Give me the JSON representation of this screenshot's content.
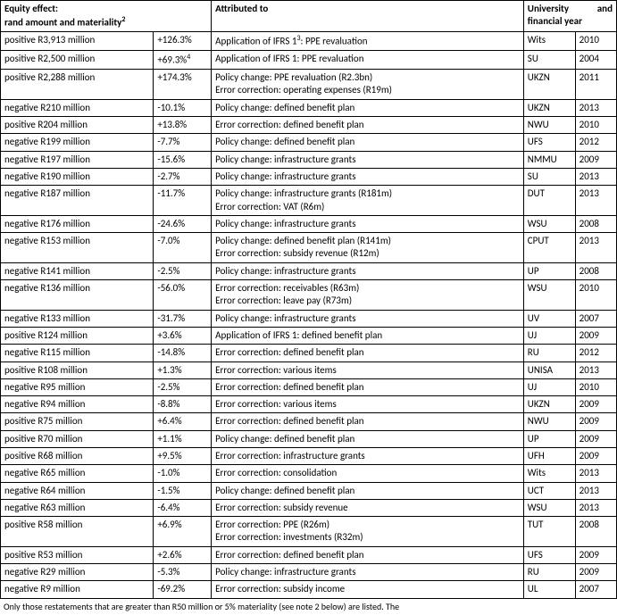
{
  "headers": {
    "equity_effect_line1": "Equity effect:",
    "equity_effect_line2": "rand amount and materiality",
    "equity_effect_sup": "2",
    "attributed_to": "Attributed to",
    "university_line1": "University",
    "university_line1_and": "and",
    "university_line2": "financial year"
  },
  "rows": [
    {
      "effect": "positive R3,913 million",
      "pct": "+126.3%",
      "pct_sup": "",
      "attr": "Application of IFRS 1",
      "attr_sup": "3",
      "attr_tail": ": PPE revaluation",
      "attr2": "",
      "uni": "Wits",
      "year": "2010"
    },
    {
      "effect": "positive R2,500 million",
      "pct": "+69.3%",
      "pct_sup": "4",
      "attr": "Application of IFRS 1: PPE revaluation",
      "attr_sup": "",
      "attr_tail": "",
      "attr2": "",
      "uni": "SU",
      "year": "2004"
    },
    {
      "effect": "positive R2,288 million",
      "pct": "+174.3%",
      "pct_sup": "",
      "attr": "Policy change: PPE revaluation (R2.3bn)",
      "attr_sup": "",
      "attr_tail": "",
      "attr2": "Error correction: operating expenses (R19m)",
      "uni": "UKZN",
      "year": "2011"
    },
    {
      "effect": "negative R210 million",
      "pct": "-10.1%",
      "pct_sup": "",
      "attr": "Policy change: defined benefit plan",
      "attr_sup": "",
      "attr_tail": "",
      "attr2": "",
      "uni": "UKZN",
      "year": "2013"
    },
    {
      "effect": "positive R204 million",
      "pct": "+13.8%",
      "pct_sup": "",
      "attr": "Error correction: defined benefit plan",
      "attr_sup": "",
      "attr_tail": "",
      "attr2": "",
      "uni": "NWU",
      "year": "2010"
    },
    {
      "effect": "negative R199 million",
      "pct": "-7.7%",
      "pct_sup": "",
      "attr": "Policy change: defined benefit plan",
      "attr_sup": "",
      "attr_tail": "",
      "attr2": "",
      "uni": "UFS",
      "year": "2012"
    },
    {
      "effect": "negative R197 million",
      "pct": "-15.6%",
      "pct_sup": "",
      "attr": "Policy change: infrastructure grants",
      "attr_sup": "",
      "attr_tail": "",
      "attr2": "",
      "uni": "NMMU",
      "year": "2009"
    },
    {
      "effect": "negative R190 million",
      "pct": "-2.7%",
      "pct_sup": "",
      "attr": "Policy change: infrastructure grants",
      "attr_sup": "",
      "attr_tail": "",
      "attr2": "",
      "uni": "SU",
      "year": "2013"
    },
    {
      "effect": "negative R187 million",
      "pct": "-11.7%",
      "pct_sup": "",
      "attr": "Policy change: infrastructure grants (R181m)",
      "attr_sup": "",
      "attr_tail": "",
      "attr2": "Error correction: VAT (R6m)",
      "uni": "DUT",
      "year": "2013"
    },
    {
      "effect": "negative R176 million",
      "pct": "-24.6%",
      "pct_sup": "",
      "attr": "Policy change: infrastructure grants",
      "attr_sup": "",
      "attr_tail": "",
      "attr2": "",
      "uni": "WSU",
      "year": "2008"
    },
    {
      "effect": "negative R153 million",
      "pct": "-7.0%",
      "pct_sup": "",
      "attr": "Policy change: defined benefit plan (R141m)",
      "attr_sup": "",
      "attr_tail": "",
      "attr2": "Error correction: subsidy revenue (R12m)",
      "uni": "CPUT",
      "year": "2013"
    },
    {
      "effect": "negative R141 million",
      "pct": "-2.5%",
      "pct_sup": "",
      "attr": "Policy change: infrastructure grants",
      "attr_sup": "",
      "attr_tail": "",
      "attr2": "",
      "uni": "UP",
      "year": "2008"
    },
    {
      "effect": "negative R136 million",
      "pct": "-56.0%",
      "pct_sup": "",
      "attr": "Error correction: receivables (R63m)",
      "attr_sup": "",
      "attr_tail": "",
      "attr2": "Error correction: leave pay (R73m)",
      "uni": "WSU",
      "year": "2010"
    },
    {
      "effect": "negative R133 million",
      "pct": "-31.7%",
      "pct_sup": "",
      "attr": "Policy change: infrastructure grants",
      "attr_sup": "",
      "attr_tail": "",
      "attr2": "",
      "uni": "UV",
      "year": "2007"
    },
    {
      "effect": "positive R124 million",
      "pct": "+3.6%",
      "pct_sup": "",
      "attr": "Application of IFRS 1: defined benefit plan",
      "attr_sup": "",
      "attr_tail": "",
      "attr2": "",
      "uni": "UJ",
      "year": "2009"
    },
    {
      "effect": "negative R115 million",
      "pct": "-14.8%",
      "pct_sup": "",
      "attr": "Error correction: defined benefit plan",
      "attr_sup": "",
      "attr_tail": "",
      "attr2": "",
      "uni": "RU",
      "year": "2012"
    },
    {
      "effect": "positive R108 million",
      "pct": "+1.3%",
      "pct_sup": "",
      "attr": "Error correction: various items",
      "attr_sup": "",
      "attr_tail": "",
      "attr2": "",
      "uni": "UNISA",
      "year": "2013"
    },
    {
      "effect": "negative R95 million",
      "pct": "-2.5%",
      "pct_sup": "",
      "attr": "Error correction: defined benefit plan",
      "attr_sup": "",
      "attr_tail": "",
      "attr2": "",
      "uni": "UJ",
      "year": "2010"
    },
    {
      "effect": "negative R94 million",
      "pct": "-8.8%",
      "pct_sup": "",
      "attr": "Error correction: various items",
      "attr_sup": "",
      "attr_tail": "",
      "attr2": "",
      "uni": "UKZN",
      "year": "2009"
    },
    {
      "effect": "positive R75 million",
      "pct": "+6.4%",
      "pct_sup": "",
      "attr": "Error correction: defined benefit plan",
      "attr_sup": "",
      "attr_tail": "",
      "attr2": "",
      "uni": "NWU",
      "year": "2009"
    },
    {
      "effect": "positive R70 million",
      "pct": "+1.1%",
      "pct_sup": "",
      "attr": "Policy change: defined benefit plan",
      "attr_sup": "",
      "attr_tail": "",
      "attr2": "",
      "uni": "UP",
      "year": "2009"
    },
    {
      "effect": "positive R68 million",
      "pct": "+9.5%",
      "pct_sup": "",
      "attr": "Error correction: infrastructure grants",
      "attr_sup": "",
      "attr_tail": "",
      "attr2": "",
      "uni": "UFH",
      "year": "2009"
    },
    {
      "effect": "negative R65 million",
      "pct": "-1.0%",
      "pct_sup": "",
      "attr": "Error correction: consolidation",
      "attr_sup": "",
      "attr_tail": "",
      "attr2": "",
      "uni": "Wits",
      "year": "2013"
    },
    {
      "effect": "negative R64 million",
      "pct": "-1.5%",
      "pct_sup": "",
      "attr": "Policy change: defined benefit plan",
      "attr_sup": "",
      "attr_tail": "",
      "attr2": "",
      "uni": "UCT",
      "year": "2013"
    },
    {
      "effect": "negative R63 million",
      "pct": "-6.4%",
      "pct_sup": "",
      "attr": "Error correction: subsidy revenue",
      "attr_sup": "",
      "attr_tail": "",
      "attr2": "",
      "uni": "WSU",
      "year": "2013"
    },
    {
      "effect": "positive R58 million",
      "pct": "+6.9%",
      "pct_sup": "",
      "attr": "Error correction: PPE (R26m)",
      "attr_sup": "",
      "attr_tail": "",
      "attr2": "Error correction: investments (R32m)",
      "uni": "TUT",
      "year": "2008"
    },
    {
      "effect": "positive R53 million",
      "pct": "+2.6%",
      "pct_sup": "",
      "attr": "Error correction: defined benefit plan",
      "attr_sup": "",
      "attr_tail": "",
      "attr2": "",
      "uni": "UFS",
      "year": "2009"
    },
    {
      "effect": "negative R29 million",
      "pct": "-5.3%",
      "pct_sup": "",
      "attr": "Policy change: infrastructure grants",
      "attr_sup": "",
      "attr_tail": "",
      "attr2": "",
      "uni": "RU",
      "year": "2009"
    },
    {
      "effect": "negative R9 million",
      "pct": "-69.2%",
      "pct_sup": "",
      "attr": "Error correction: subsidy income",
      "attr_sup": "",
      "attr_tail": "",
      "attr2": "",
      "uni": "UL",
      "year": "2007"
    }
  ],
  "footnote_partial": "Only those restatements that are greater than R50 million or 5% materiality (see note 2 below) are listed. The"
}
